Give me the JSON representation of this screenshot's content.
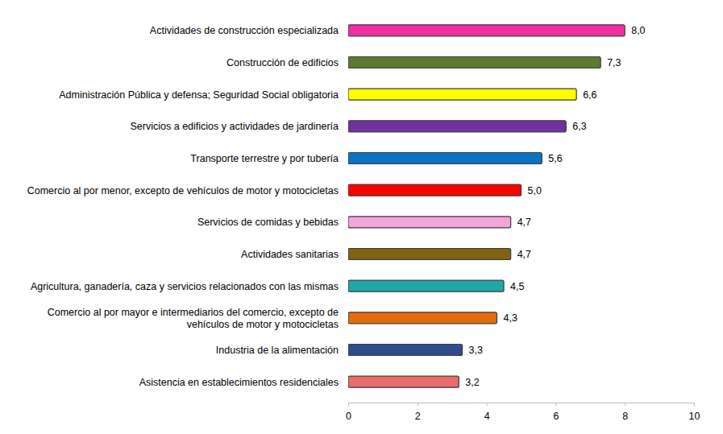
{
  "chart_data": {
    "type": "bar",
    "orientation": "horizontal",
    "categories": [
      "Actividades de construcción especializada",
      "Construcción de edificios",
      "Administración Pública y defensa; Seguridad Social obligatoria",
      "Servicios a edificios y actividades de jardinería",
      "Transporte terrestre y por tubería",
      "Comercio al por menor, excepto de vehículos de motor y motocicletas",
      "Servicios de comidas y bebidas",
      "Actividades sanitarias",
      "Agricultura, ganadería, caza y servicios relacionados con las mismas",
      "Comercio al por mayor e intermediarios del comercio, excepto de vehículos de motor y motocicletas",
      "Industria de la alimentación",
      "Asistencia en establecimientos residenciales"
    ],
    "values": [
      8.0,
      7.3,
      6.6,
      6.3,
      5.6,
      5.0,
      4.7,
      4.7,
      4.5,
      4.3,
      3.3,
      3.2
    ],
    "value_labels": [
      "8,0",
      "7,3",
      "6,6",
      "6,3",
      "5,6",
      "5,0",
      "4,7",
      "4,7",
      "4,5",
      "4,3",
      "3,3",
      "3,2"
    ],
    "colors": [
      "#f02fa6",
      "#5b7a34",
      "#ffff00",
      "#7030a0",
      "#0a74c4",
      "#ff0000",
      "#f4a3dc",
      "#7f6313",
      "#1fa8a8",
      "#e46c0a",
      "#2f4b8e",
      "#ea6b6b"
    ],
    "xlim": [
      0,
      10
    ],
    "xticks": [
      0,
      2,
      4,
      6,
      8,
      10
    ],
    "data_labels": true,
    "grid": false
  }
}
